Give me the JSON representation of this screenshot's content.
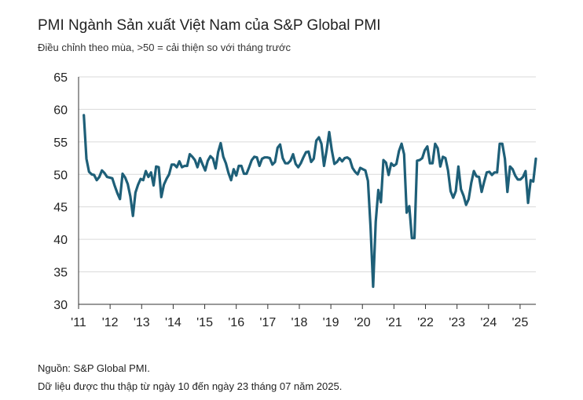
{
  "chart_data": {
    "type": "line",
    "title": "PMI Ngành Sản xuất Việt Nam của S&P Global PMI",
    "subtitle": "Điều chỉnh theo mùa, >50 = cải thiện so với tháng trước",
    "xlabel": "",
    "ylabel": "",
    "ylim": [
      30,
      65
    ],
    "yticks": [
      "30",
      "35",
      "40",
      "45",
      "50",
      "55",
      "60",
      "65"
    ],
    "xticks": [
      "'11",
      "'12",
      "'13",
      "'14",
      "'15",
      "'16",
      "'17",
      "'18",
      "'19",
      "'20",
      "'21",
      "'22",
      "'23",
      "'24",
      "'25"
    ],
    "x_start": "2011-03",
    "x_end": "2025-07",
    "grid": true,
    "legend": "none",
    "line_color": "#1e5f78",
    "values": [
      59.1,
      52.4,
      50.4,
      50.0,
      49.9,
      49.1,
      49.6,
      50.6,
      50.2,
      49.6,
      49.5,
      49.4,
      48.2,
      47.1,
      46.2,
      50.1,
      49.5,
      48.5,
      46.6,
      43.6,
      47.2,
      48.4,
      49.3,
      49.1,
      50.5,
      49.6,
      50.3,
      48.3,
      51.2,
      51.1,
      46.5,
      48.4,
      49.3,
      50.0,
      51.5,
      51.5,
      51.1,
      52.0,
      51.1,
      51.3,
      51.3,
      53.1,
      52.7,
      52.2,
      51.1,
      52.5,
      51.5,
      50.6,
      52.1,
      52.8,
      52.4,
      50.9,
      53.4,
      54.8,
      52.7,
      51.7,
      50.2,
      49.1,
      50.8,
      49.8,
      51.3,
      51.3,
      50.1,
      50.1,
      51.1,
      52.2,
      52.7,
      52.6,
      51.3,
      52.4,
      52.6,
      52.6,
      52.5,
      51.5,
      51.9,
      54.1,
      54.6,
      52.5,
      51.7,
      51.7,
      52.1,
      53.1,
      51.6,
      51.1,
      51.7,
      52.6,
      53.4,
      53.5,
      51.9,
      52.4,
      55.2,
      55.7,
      54.7,
      51.3,
      53.7,
      56.5,
      53.7,
      51.6,
      51.9,
      52.5,
      52.0,
      52.5,
      52.6,
      52.3,
      51.0,
      50.4,
      50.0,
      51.0,
      50.8,
      50.6,
      49.0,
      41.9,
      32.7,
      42.7,
      47.6,
      45.7,
      52.2,
      51.8,
      49.9,
      51.7,
      51.3,
      51.6,
      53.6,
      54.7,
      53.1,
      44.1,
      45.1,
      40.2,
      40.2,
      52.1,
      52.2,
      52.5,
      53.7,
      54.3,
      51.7,
      51.7,
      54.7,
      54.0,
      51.2,
      52.7,
      52.5,
      50.6,
      47.4,
      46.4,
      47.4,
      51.2,
      47.7,
      46.7,
      45.3,
      46.2,
      48.7,
      50.5,
      49.7,
      49.6,
      47.3,
      48.9,
      50.3,
      50.4,
      49.9,
      50.3,
      50.3,
      54.7,
      54.7,
      52.4,
      47.3,
      51.2,
      50.8,
      49.8,
      49.2,
      49.2,
      49.6,
      50.5,
      45.6,
      49.1,
      48.9,
      52.4
    ]
  },
  "footer": {
    "source": "Nguồn: S&P Global PMI.",
    "note": "Dữ liệu được thu thập từ ngày 10 đến ngày 23 tháng 07 năm 2025."
  }
}
